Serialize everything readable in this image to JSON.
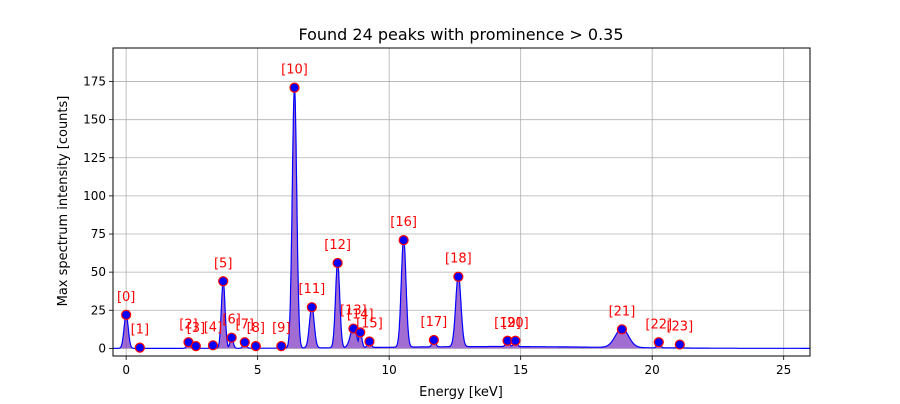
{
  "chart_data": {
    "type": "line",
    "title": "Found 24 peaks with prominence > 0.35",
    "xlabel": "Energy [keV]",
    "ylabel": "Max spectrum intensity [counts]",
    "xlim": [
      -0.5,
      26
    ],
    "ylim": [
      -5,
      197
    ],
    "xticks": [
      0,
      5,
      10,
      15,
      20,
      25
    ],
    "yticks": [
      0,
      25,
      50,
      75,
      100,
      125,
      150,
      175
    ],
    "grid": true,
    "series_color": "#0000ff",
    "fill_color": "#7b2fbf",
    "peak_marker_fill": "#0000ff",
    "peak_marker_edge": "#ff0000",
    "label_color": "#ff0000",
    "peaks": [
      {
        "label": "[0]",
        "x": 0.0,
        "y": 22
      },
      {
        "label": "[1]",
        "x": 0.52,
        "y": 0.5
      },
      {
        "label": "[2]",
        "x": 2.37,
        "y": 4
      },
      {
        "label": "[3]",
        "x": 2.65,
        "y": 1.5
      },
      {
        "label": "[4]",
        "x": 3.3,
        "y": 2
      },
      {
        "label": "[5]",
        "x": 3.69,
        "y": 44
      },
      {
        "label": "[6]",
        "x": 4.01,
        "y": 7
      },
      {
        "label": "[7]",
        "x": 4.51,
        "y": 4
      },
      {
        "label": "[8]",
        "x": 4.93,
        "y": 1.5
      },
      {
        "label": "[9]",
        "x": 5.9,
        "y": 1.5
      },
      {
        "label": "[10]",
        "x": 6.4,
        "y": 171
      },
      {
        "label": "[11]",
        "x": 7.06,
        "y": 27
      },
      {
        "label": "[12]",
        "x": 8.04,
        "y": 56
      },
      {
        "label": "[13]",
        "x": 8.64,
        "y": 13
      },
      {
        "label": "[14]",
        "x": 8.9,
        "y": 10.5
      },
      {
        "label": "[15]",
        "x": 9.25,
        "y": 4.5
      },
      {
        "label": "[16]",
        "x": 10.55,
        "y": 71
      },
      {
        "label": "[17]",
        "x": 11.7,
        "y": 5.5
      },
      {
        "label": "[18]",
        "x": 12.63,
        "y": 47
      },
      {
        "label": "[19]",
        "x": 14.5,
        "y": 5
      },
      {
        "label": "[20]",
        "x": 14.8,
        "y": 5
      },
      {
        "label": "[21]",
        "x": 18.85,
        "y": 12.5
      },
      {
        "label": "[22]",
        "x": 20.25,
        "y": 4
      },
      {
        "label": "[23]",
        "x": 21.05,
        "y": 2.5
      }
    ],
    "fill_peaks": [
      {
        "x": 0.0,
        "y": 22,
        "w": 0.08
      },
      {
        "x": 3.69,
        "y": 44,
        "w": 0.07
      },
      {
        "x": 6.4,
        "y": 171,
        "w": 0.085
      },
      {
        "x": 7.06,
        "y": 27,
        "w": 0.09
      },
      {
        "x": 8.04,
        "y": 56,
        "w": 0.08
      },
      {
        "x": 8.64,
        "y": 13,
        "w": 0.12
      },
      {
        "x": 10.55,
        "y": 71,
        "w": 0.09
      },
      {
        "x": 12.63,
        "y": 47,
        "w": 0.1
      },
      {
        "x": 18.85,
        "y": 12.5,
        "w": 0.25
      }
    ]
  }
}
